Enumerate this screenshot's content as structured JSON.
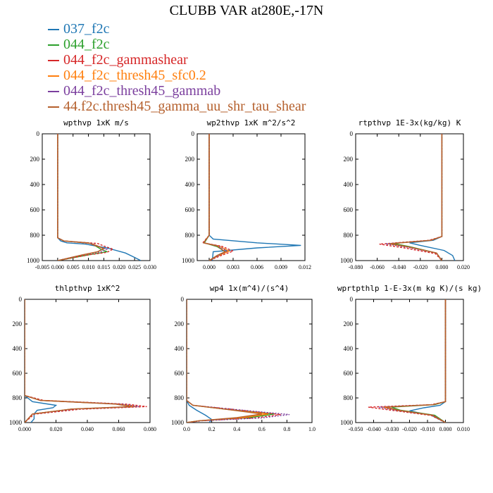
{
  "title": "CLUBB VAR at280E,-17N",
  "legend": [
    {
      "label": "037_f2c",
      "color": "#1f77b4"
    },
    {
      "label": "044_f2c",
      "color": "#2ca02c"
    },
    {
      "label": "044_f2c_gammashear",
      "color": "#d62728"
    },
    {
      "label": "044_f2c_thresh45_sfc0.2",
      "color": "#ff7f0e"
    },
    {
      "label": "044_f2c_thresh45_gammab",
      "color": "#7b3f9e"
    },
    {
      "label": "44.f2c.thresh45_gamma_uu_shr_tau_shear",
      "color": "#b5602d"
    }
  ],
  "chart_data": [
    {
      "type": "line",
      "title": "wpthvp  1xK m/s",
      "xlim": [
        -0.005,
        0.03
      ],
      "ylim": [
        0,
        1000
      ],
      "y_inverted": true,
      "xticks": [
        "-0.005",
        "0.000",
        "0.005",
        "0.010",
        "0.015",
        "0.020",
        "0.025",
        "0.030"
      ],
      "yticks": [
        "0",
        "200",
        "400",
        "600",
        "800",
        "1000"
      ],
      "series": [
        {
          "x": [
            0,
            0,
            0.001,
            0.003,
            0.009,
            0.016,
            0.022,
            0.025,
            0.027
          ],
          "y": [
            0,
            820,
            845,
            860,
            870,
            900,
            940,
            975,
            1000
          ]
        },
        {
          "x": [
            0,
            0,
            0.002,
            0.011,
            0.012,
            0.014,
            0.016,
            0.01,
            0
          ],
          "y": [
            0,
            820,
            845,
            865,
            880,
            910,
            930,
            955,
            1000
          ]
        },
        {
          "x": [
            0,
            0,
            0.002,
            0.013,
            0.015,
            0.018,
            0.016,
            0.01,
            0
          ],
          "y": [
            0,
            820,
            845,
            865,
            885,
            910,
            935,
            955,
            1000
          ]
        },
        {
          "x": [
            0,
            0,
            0.002,
            0.011,
            0.013,
            0.015,
            0.013,
            0.008,
            0
          ],
          "y": [
            0,
            820,
            845,
            865,
            885,
            905,
            930,
            955,
            1000
          ]
        },
        {
          "x": [
            0,
            0,
            0.002,
            0.011,
            0.013,
            0.016,
            0.014,
            0.008,
            0
          ],
          "y": [
            0,
            820,
            845,
            865,
            885,
            910,
            930,
            955,
            1000
          ]
        },
        {
          "x": [
            0,
            0,
            0.002,
            0.01,
            0.012,
            0.015,
            0.013,
            0.008,
            0
          ],
          "y": [
            0,
            820,
            845,
            860,
            880,
            905,
            930,
            955,
            1000
          ]
        }
      ]
    },
    {
      "type": "line",
      "title": "wp2thvp  1xK m^2/s^2",
      "xlim": [
        -0.0015,
        0.012
      ],
      "ylim": [
        0,
        1000
      ],
      "y_inverted": true,
      "xticks": [
        "0.000",
        "0.003",
        "0.006",
        "0.009",
        "0.012"
      ],
      "yticks": [
        "0",
        "200",
        "400",
        "600",
        "800",
        "1000"
      ],
      "series": [
        {
          "x": [
            0,
            0,
            0.0005,
            0.006,
            0.0115,
            0.006,
            0.0005,
            0.0004
          ],
          "y": [
            0,
            800,
            830,
            860,
            880,
            900,
            930,
            1000
          ]
        },
        {
          "x": [
            0,
            0,
            -0.0006,
            0.001,
            0.002,
            0.001,
            0
          ],
          "y": [
            0,
            800,
            860,
            890,
            930,
            960,
            1000
          ]
        },
        {
          "x": [
            0,
            0,
            -0.0008,
            0.0015,
            0.003,
            0.0015,
            0
          ],
          "y": [
            0,
            800,
            860,
            885,
            925,
            960,
            1000
          ]
        },
        {
          "x": [
            0,
            0,
            -0.0007,
            0.0012,
            0.0025,
            0.0012,
            0
          ],
          "y": [
            0,
            800,
            860,
            885,
            925,
            960,
            1000
          ]
        },
        {
          "x": [
            0,
            0,
            -0.0007,
            0.0012,
            0.0022,
            0.0012,
            0
          ],
          "y": [
            0,
            800,
            860,
            885,
            925,
            960,
            1000
          ]
        },
        {
          "x": [
            0,
            0,
            -0.0007,
            0.001,
            0.002,
            0.001,
            0
          ],
          "y": [
            0,
            800,
            860,
            885,
            930,
            960,
            1000
          ]
        }
      ]
    },
    {
      "type": "line",
      "title": "rtpthvp  1E-3x(kg/kg) K",
      "xlim": [
        -0.08,
        0.02
      ],
      "ylim": [
        0,
        1000
      ],
      "y_inverted": true,
      "xticks": [
        "-0.080",
        "-0.060",
        "-0.040",
        "-0.020",
        "0.000",
        "0.020"
      ],
      "yticks": [
        "0",
        "200",
        "400",
        "600",
        "800",
        "1000"
      ],
      "series": [
        {
          "x": [
            0,
            0,
            -0.008,
            -0.03,
            -0.02,
            0.002,
            0.01,
            0.012
          ],
          "y": [
            0,
            810,
            840,
            860,
            880,
            920,
            960,
            1000
          ]
        },
        {
          "x": [
            0,
            0,
            -0.01,
            -0.045,
            -0.03,
            -0.005,
            0
          ],
          "y": [
            0,
            810,
            840,
            865,
            890,
            940,
            1000
          ]
        },
        {
          "x": [
            0,
            0,
            -0.012,
            -0.058,
            -0.035,
            -0.006,
            0
          ],
          "y": [
            0,
            810,
            840,
            870,
            900,
            945,
            1000
          ]
        },
        {
          "x": [
            0,
            0,
            -0.01,
            -0.05,
            -0.03,
            -0.005,
            0
          ],
          "y": [
            0,
            810,
            840,
            868,
            895,
            940,
            1000
          ]
        },
        {
          "x": [
            0,
            0,
            -0.01,
            -0.052,
            -0.032,
            -0.005,
            0
          ],
          "y": [
            0,
            810,
            840,
            868,
            895,
            940,
            1000
          ]
        },
        {
          "x": [
            0,
            0,
            -0.01,
            -0.048,
            -0.03,
            -0.005,
            0
          ],
          "y": [
            0,
            810,
            840,
            866,
            893,
            940,
            1000
          ]
        }
      ]
    },
    {
      "type": "line",
      "title": "thlpthvp  1xK^2",
      "xlim": [
        0,
        0.08
      ],
      "ylim": [
        0,
        1000
      ],
      "y_inverted": true,
      "xticks": [
        "0.000",
        "0.020",
        "0.040",
        "0.060",
        "0.080"
      ],
      "yticks": [
        "0",
        "200",
        "400",
        "600",
        "800",
        "1000"
      ],
      "series": [
        {
          "x": [
            0,
            0,
            0.005,
            0.02,
            0.018,
            0.008,
            0.006,
            0.006,
            0.004
          ],
          "y": [
            0,
            780,
            830,
            860,
            880,
            900,
            930,
            970,
            1000
          ]
        },
        {
          "x": [
            0,
            0,
            0.01,
            0.06,
            0.07,
            0.03,
            0.005,
            0
          ],
          "y": [
            0,
            780,
            820,
            850,
            870,
            890,
            930,
            1000
          ]
        },
        {
          "x": [
            0,
            0,
            0.012,
            0.065,
            0.078,
            0.035,
            0.006,
            0
          ],
          "y": [
            0,
            780,
            820,
            850,
            870,
            892,
            932,
            1000
          ]
        },
        {
          "x": [
            0,
            0,
            0.01,
            0.06,
            0.072,
            0.03,
            0.005,
            0
          ],
          "y": [
            0,
            780,
            820,
            850,
            870,
            890,
            930,
            1000
          ]
        },
        {
          "x": [
            0,
            0,
            0.01,
            0.062,
            0.073,
            0.032,
            0.005,
            0
          ],
          "y": [
            0,
            780,
            820,
            850,
            870,
            890,
            930,
            1000
          ]
        },
        {
          "x": [
            0,
            0,
            0.01,
            0.058,
            0.068,
            0.03,
            0.005,
            0
          ],
          "y": [
            0,
            780,
            820,
            850,
            870,
            890,
            930,
            1000
          ]
        }
      ]
    },
    {
      "type": "line",
      "title": "wp4  1x(m^4)/(s^4)",
      "xlim": [
        0,
        1.0
      ],
      "ylim": [
        0,
        1000
      ],
      "y_inverted": true,
      "xticks": [
        "0.0",
        "0.2",
        "0.4",
        "0.6",
        "0.8",
        "1.0"
      ],
      "yticks": [
        "0",
        "200",
        "400",
        "600",
        "800",
        "1000"
      ],
      "series": [
        {
          "x": [
            0,
            0,
            0.02,
            0.08,
            0.15,
            0.2,
            0.18
          ],
          "y": [
            0,
            820,
            860,
            900,
            940,
            975,
            1000
          ]
        },
        {
          "x": [
            0,
            0,
            0.05,
            0.3,
            0.7,
            0.5,
            0.1,
            0
          ],
          "y": [
            0,
            820,
            860,
            890,
            930,
            960,
            985,
            1000
          ]
        },
        {
          "x": [
            0,
            0,
            0.05,
            0.35,
            0.75,
            0.55,
            0.12,
            0
          ],
          "y": [
            0,
            820,
            860,
            890,
            935,
            962,
            985,
            1000
          ]
        },
        {
          "x": [
            0,
            0,
            0.05,
            0.3,
            0.65,
            0.45,
            0.1,
            0
          ],
          "y": [
            0,
            820,
            860,
            890,
            930,
            960,
            985,
            1000
          ]
        },
        {
          "x": [
            0,
            0,
            0.05,
            0.35,
            0.82,
            0.6,
            0.12,
            0
          ],
          "y": [
            0,
            820,
            860,
            890,
            935,
            962,
            985,
            1000
          ]
        },
        {
          "x": [
            0,
            0,
            0.05,
            0.3,
            0.6,
            0.4,
            0.1,
            0
          ],
          "y": [
            0,
            820,
            860,
            890,
            930,
            960,
            985,
            1000
          ]
        }
      ]
    },
    {
      "type": "line",
      "title": "wprtpthlp  1-E-3x(m kg K)/(s kg)",
      "xlim": [
        -0.05,
        0.01
      ],
      "ylim": [
        0,
        1000
      ],
      "y_inverted": true,
      "xticks": [
        "-0.050",
        "-0.040",
        "-0.030",
        "-0.020",
        "-0.010",
        "0.000",
        "0.010"
      ],
      "yticks": [
        "0",
        "200",
        "400",
        "600",
        "800",
        "1000"
      ],
      "series": [
        {
          "x": [
            0,
            0,
            -0.003,
            -0.012,
            -0.02,
            -0.008,
            0
          ],
          "y": [
            0,
            830,
            860,
            880,
            905,
            940,
            1000
          ]
        },
        {
          "x": [
            0,
            0,
            -0.006,
            -0.03,
            -0.025,
            -0.006,
            0
          ],
          "y": [
            0,
            830,
            855,
            875,
            900,
            940,
            1000
          ]
        },
        {
          "x": [
            0,
            0,
            -0.008,
            -0.043,
            -0.03,
            -0.008,
            0
          ],
          "y": [
            0,
            830,
            855,
            875,
            900,
            942,
            1000
          ]
        },
        {
          "x": [
            0,
            0,
            -0.007,
            -0.035,
            -0.027,
            -0.007,
            0
          ],
          "y": [
            0,
            830,
            855,
            875,
            900,
            940,
            1000
          ]
        },
        {
          "x": [
            0,
            0,
            -0.007,
            -0.037,
            -0.028,
            -0.007,
            0
          ],
          "y": [
            0,
            830,
            855,
            875,
            900,
            940,
            1000
          ]
        },
        {
          "x": [
            0,
            0,
            -0.007,
            -0.033,
            -0.026,
            -0.007,
            0
          ],
          "y": [
            0,
            830,
            855,
            875,
            900,
            940,
            1000
          ]
        }
      ]
    }
  ]
}
